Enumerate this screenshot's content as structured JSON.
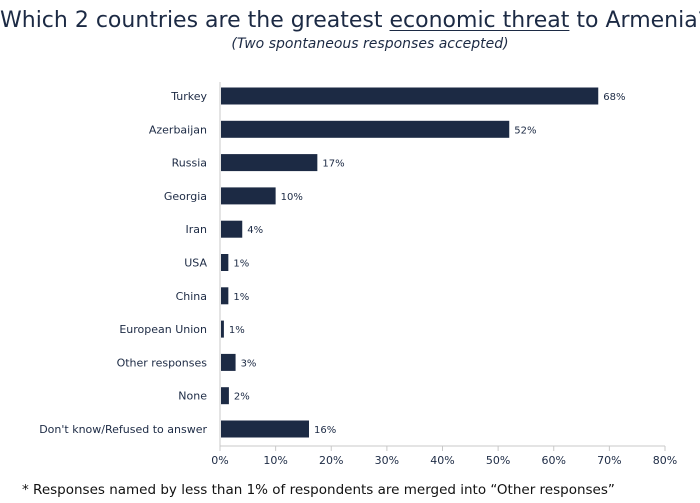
{
  "title": {
    "before": "Which 2 countries are the greatest ",
    "highlight": "economic threat",
    "after": " to Armenia?"
  },
  "subtitle": "(Two spontaneous responses accepted)",
  "footnote": "* Responses named by less than 1% of respondents are merged into “Other responses”",
  "colors": {
    "bar": "#1c2a44",
    "axis": "#c8c8c8",
    "text": "#1c2a44"
  },
  "chart_data": {
    "type": "bar",
    "orientation": "horizontal",
    "categories": [
      "Turkey",
      "Azerbaijan",
      "Russia",
      "Georgia",
      "Iran",
      "USA",
      "China",
      "European Union",
      "Other responses",
      "None",
      "Don't know/Refused to answer"
    ],
    "values": [
      68,
      52,
      17,
      10,
      4,
      1,
      1,
      1,
      3,
      2,
      16
    ],
    "bar_values": [
      68,
      52,
      17.5,
      10,
      4,
      1.5,
      1.5,
      0.7,
      2.8,
      1.6,
      16
    ],
    "value_labels": [
      "68%",
      "52%",
      "17%",
      "10%",
      "4%",
      "1%",
      "1%",
      "1%",
      "3%",
      "2%",
      "16%"
    ],
    "xlim": [
      0,
      80
    ],
    "xticks": [
      0,
      10,
      20,
      30,
      40,
      50,
      60,
      70,
      80
    ],
    "xtick_labels": [
      "0%",
      "10%",
      "20%",
      "30%",
      "40%",
      "50%",
      "60%",
      "70%",
      "80%"
    ],
    "xlabel": "",
    "ylabel": "",
    "grid": false,
    "legend": "none"
  }
}
